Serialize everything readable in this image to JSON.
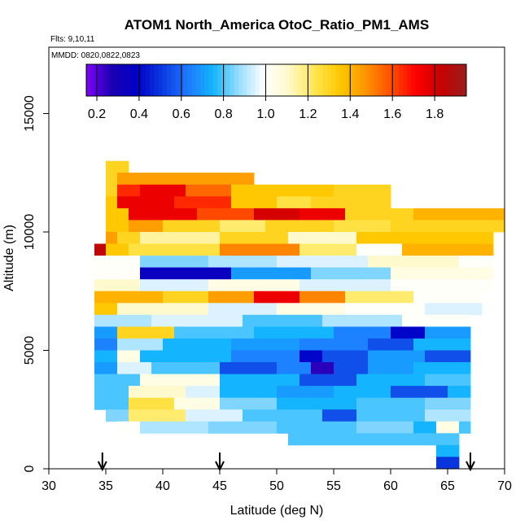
{
  "chart_data": {
    "type": "heatmap",
    "title": "ATOM1 North_America OtoC_Ratio_PM1_AMS",
    "flights_label": "Flts: 9,10,11",
    "dates_label": "MMDD: 0820,0822,0823",
    "xlabel": "Latitude (deg N)",
    "ylabel": "Altitude (m)",
    "xlim": [
      30,
      70
    ],
    "ylim": [
      0,
      17800
    ],
    "x_ticks": [
      "30",
      "35",
      "40",
      "45",
      "50",
      "55",
      "60",
      "65",
      "70"
    ],
    "y_ticks": [
      "0",
      "5000",
      "10000",
      "15000"
    ],
    "colorbar": {
      "min": 0.15,
      "max": 1.95,
      "ticks": [
        "0.2",
        "0.4",
        "0.6",
        "0.8",
        "1.0",
        "1.2",
        "1.4",
        "1.6",
        "1.8"
      ],
      "colors": [
        "#7f00ff",
        "#1a00b0",
        "#0000c8",
        "#0a3ae0",
        "#1e78ff",
        "#14b4ff",
        "#96dcff",
        "#ffffff",
        "#fffac8",
        "#ffe650",
        "#ffc800",
        "#ff9600",
        "#ff5000",
        "#ff0000",
        "#c80000",
        "#961e1e"
      ]
    },
    "arrows_latitude": [
      34.7,
      45.0,
      67.0
    ],
    "rows": [
      {
        "alt": [
          12500,
          13000
        ],
        "segments": [
          [
            35.0,
            37.0,
            1.3
          ]
        ]
      },
      {
        "alt": [
          12000,
          12500
        ],
        "segments": [
          [
            35.0,
            36.0,
            1.3
          ],
          [
            36.0,
            48.0,
            1.45
          ]
        ]
      },
      {
        "alt": [
          11500,
          12000
        ],
        "segments": [
          [
            35.0,
            36.0,
            1.3
          ],
          [
            36.0,
            38.0,
            1.65
          ],
          [
            38.0,
            42.0,
            1.75
          ],
          [
            42.0,
            46.0,
            1.55
          ],
          [
            46.0,
            55.0,
            1.35
          ],
          [
            55.0,
            60.0,
            1.3
          ]
        ]
      },
      {
        "alt": [
          11000,
          11500
        ],
        "segments": [
          [
            35.0,
            36.0,
            1.35
          ],
          [
            36.0,
            41.0,
            1.75
          ],
          [
            41.0,
            46.0,
            1.65
          ],
          [
            46.0,
            50.0,
            1.35
          ],
          [
            50.0,
            53.0,
            1.25
          ],
          [
            53.0,
            60.0,
            1.3
          ]
        ]
      },
      {
        "alt": [
          10500,
          11000
        ],
        "segments": [
          [
            35.0,
            37.0,
            1.35
          ],
          [
            37.0,
            43.0,
            1.75
          ],
          [
            43.0,
            48.0,
            1.6
          ],
          [
            48.0,
            52.0,
            1.8
          ],
          [
            52.0,
            56.0,
            1.75
          ],
          [
            56.0,
            62.0,
            1.3
          ],
          [
            62.0,
            70.0,
            1.4
          ]
        ]
      },
      {
        "alt": [
          10000,
          10500
        ],
        "segments": [
          [
            35.0,
            37.0,
            1.35
          ],
          [
            37.0,
            40.0,
            1.45
          ],
          [
            40.0,
            45.0,
            1.3
          ],
          [
            45.0,
            49.0,
            1.2
          ],
          [
            49.0,
            55.0,
            1.3
          ],
          [
            55.0,
            60.0,
            1.25
          ],
          [
            60.0,
            70.0,
            1.3
          ]
        ]
      },
      {
        "alt": [
          9500,
          10000
        ],
        "segments": [
          [
            35.0,
            36.0,
            1.45
          ],
          [
            36.0,
            38.0,
            1.3
          ],
          [
            38.0,
            45.0,
            1.15
          ],
          [
            45.0,
            51.0,
            1.3
          ],
          [
            51.0,
            57.0,
            1.1
          ],
          [
            57.0,
            69.0,
            1.35
          ]
        ]
      },
      {
        "alt": [
          9000,
          9500
        ],
        "segments": [
          [
            34.0,
            35.0,
            1.85
          ],
          [
            35.0,
            37.0,
            1.35
          ],
          [
            37.0,
            45.0,
            1.25
          ],
          [
            45.0,
            52.0,
            1.5
          ],
          [
            52.0,
            57.0,
            1.2
          ],
          [
            57.0,
            61.0,
            1.0
          ],
          [
            61.0,
            69.0,
            1.4
          ]
        ]
      },
      {
        "alt": [
          8500,
          9000
        ],
        "segments": [
          [
            34.0,
            38.0,
            1.0
          ],
          [
            38.0,
            44.0,
            0.85
          ],
          [
            44.0,
            50.0,
            0.9
          ],
          [
            50.0,
            58.0,
            0.95
          ],
          [
            58.0,
            66.0,
            1.1
          ],
          [
            66.0,
            69.0,
            1.0
          ]
        ]
      },
      {
        "alt": [
          8000,
          8500
        ],
        "segments": [
          [
            34.0,
            38.0,
            1.0
          ],
          [
            38.0,
            46.0,
            0.35
          ],
          [
            46.0,
            53.0,
            0.7
          ],
          [
            53.0,
            60.0,
            0.85
          ],
          [
            60.0,
            69.0,
            1.05
          ]
        ]
      },
      {
        "alt": [
          7500,
          8000
        ],
        "segments": [
          [
            34.0,
            38.0,
            1.1
          ],
          [
            38.0,
            44.0,
            0.95
          ],
          [
            44.0,
            52.0,
            1.05
          ],
          [
            52.0,
            60.0,
            0.95
          ],
          [
            60.0,
            69.0,
            1.0
          ]
        ]
      },
      {
        "alt": [
          7000,
          7500
        ],
        "segments": [
          [
            34.0,
            40.0,
            1.4
          ],
          [
            40.0,
            44.0,
            1.3
          ],
          [
            44.0,
            48.0,
            1.45
          ],
          [
            48.0,
            52.0,
            1.75
          ],
          [
            52.0,
            56.0,
            1.5
          ],
          [
            56.0,
            62.0,
            1.2
          ],
          [
            62.0,
            68.0,
            1.0
          ]
        ]
      },
      {
        "alt": [
          6500,
          7000
        ],
        "segments": [
          [
            34.0,
            36.0,
            1.35
          ],
          [
            36.0,
            44.0,
            1.1
          ],
          [
            44.0,
            50.0,
            0.95
          ],
          [
            50.0,
            56.0,
            1.05
          ],
          [
            56.0,
            63.0,
            1.0
          ],
          [
            63.0,
            68.0,
            0.95
          ]
        ]
      },
      {
        "alt": [
          6000,
          6500
        ],
        "segments": [
          [
            34.0,
            39.0,
            0.9
          ],
          [
            39.0,
            47.0,
            0.95
          ],
          [
            47.0,
            54.0,
            0.8
          ],
          [
            54.0,
            61.0,
            0.9
          ],
          [
            61.0,
            67.0,
            1.0
          ]
        ]
      },
      {
        "alt": [
          5500,
          6000
        ],
        "segments": [
          [
            34.0,
            36.0,
            0.7
          ],
          [
            36.0,
            41.0,
            1.3
          ],
          [
            41.0,
            48.0,
            0.8
          ],
          [
            48.0,
            55.0,
            0.75
          ],
          [
            55.0,
            60.0,
            0.65
          ],
          [
            60.0,
            63.0,
            0.4
          ],
          [
            63.0,
            67.0,
            0.7
          ]
        ]
      },
      {
        "alt": [
          5000,
          5500
        ],
        "segments": [
          [
            34.0,
            36.0,
            0.65
          ],
          [
            36.0,
            40.0,
            0.9
          ],
          [
            40.0,
            46.0,
            0.75
          ],
          [
            46.0,
            52.0,
            0.7
          ],
          [
            52.0,
            58.0,
            0.65
          ],
          [
            58.0,
            62.0,
            0.55
          ],
          [
            62.0,
            67.0,
            0.75
          ]
        ]
      },
      {
        "alt": [
          4500,
          5000
        ],
        "segments": [
          [
            34.0,
            36.0,
            0.75
          ],
          [
            36.0,
            38.0,
            1.05
          ],
          [
            38.0,
            46.0,
            0.75
          ],
          [
            46.0,
            52.0,
            0.65
          ],
          [
            52.0,
            54.0,
            0.4
          ],
          [
            54.0,
            58.0,
            0.55
          ],
          [
            58.0,
            63.0,
            0.7
          ],
          [
            63.0,
            67.0,
            0.55
          ]
        ]
      },
      {
        "alt": [
          4000,
          4500
        ],
        "segments": [
          [
            34.0,
            36.0,
            0.7
          ],
          [
            36.0,
            39.0,
            0.95
          ],
          [
            39.0,
            45.0,
            0.8
          ],
          [
            45.0,
            50.0,
            0.55
          ],
          [
            50.0,
            53.0,
            0.65
          ],
          [
            53.0,
            55.0,
            0.25
          ],
          [
            55.0,
            58.0,
            0.55
          ],
          [
            58.0,
            62.0,
            0.7
          ],
          [
            62.0,
            67.0,
            0.75
          ]
        ]
      },
      {
        "alt": [
          3500,
          4000
        ],
        "segments": [
          [
            34.0,
            38.0,
            0.8
          ],
          [
            38.0,
            45.0,
            1.05
          ],
          [
            45.0,
            52.0,
            0.75
          ],
          [
            52.0,
            57.0,
            0.55
          ],
          [
            57.0,
            63.0,
            0.75
          ],
          [
            63.0,
            67.0,
            0.8
          ]
        ]
      },
      {
        "alt": [
          3000,
          3500
        ],
        "segments": [
          [
            34.0,
            37.0,
            0.8
          ],
          [
            37.0,
            42.0,
            1.1
          ],
          [
            42.0,
            45.0,
            0.95
          ],
          [
            45.0,
            50.0,
            0.75
          ],
          [
            50.0,
            55.0,
            0.7
          ],
          [
            55.0,
            60.0,
            0.75
          ],
          [
            60.0,
            65.0,
            0.55
          ],
          [
            65.0,
            67.0,
            0.75
          ]
        ]
      },
      {
        "alt": [
          2500,
          3000
        ],
        "segments": [
          [
            34.0,
            37.0,
            0.8
          ],
          [
            37.0,
            41.0,
            1.25
          ],
          [
            41.0,
            45.0,
            1.05
          ],
          [
            45.0,
            50.0,
            0.85
          ],
          [
            50.0,
            57.0,
            0.75
          ],
          [
            57.0,
            63.0,
            0.8
          ],
          [
            63.0,
            67.0,
            0.85
          ]
        ]
      },
      {
        "alt": [
          2000,
          2500
        ],
        "segments": [
          [
            35.0,
            37.0,
            0.85
          ],
          [
            37.0,
            42.0,
            1.2
          ],
          [
            42.0,
            47.0,
            0.95
          ],
          [
            47.0,
            54.0,
            0.8
          ],
          [
            54.0,
            57.0,
            0.55
          ],
          [
            57.0,
            63.0,
            0.8
          ],
          [
            63.0,
            67.0,
            0.9
          ]
        ]
      },
      {
        "alt": [
          1500,
          2000
        ],
        "segments": [
          [
            36.0,
            38.0,
            1.0
          ],
          [
            38.0,
            44.0,
            0.9
          ],
          [
            44.0,
            50.0,
            0.85
          ],
          [
            50.0,
            57.0,
            0.8
          ],
          [
            57.0,
            62.0,
            0.85
          ],
          [
            62.0,
            64.0,
            0.75
          ],
          [
            64.0,
            66.0,
            1.05
          ],
          [
            66.0,
            67.0,
            0.8
          ]
        ]
      },
      {
        "alt": [
          1000,
          1500
        ],
        "segments": [
          [
            51.0,
            66.0,
            0.8
          ]
        ]
      },
      {
        "alt": [
          500,
          1000
        ],
        "segments": [
          [
            64.0,
            66.0,
            0.75
          ]
        ]
      },
      {
        "alt": [
          0,
          500
        ],
        "segments": [
          [
            64.0,
            66.0,
            0.5
          ]
        ]
      }
    ]
  }
}
